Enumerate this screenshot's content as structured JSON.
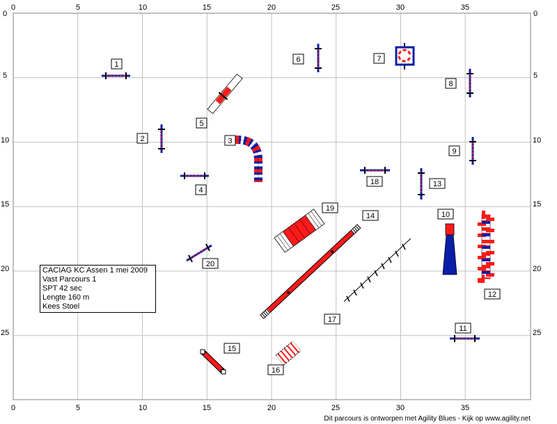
{
  "grid": {
    "x_ticks": [
      "0",
      "5",
      "10",
      "15",
      "20",
      "25",
      "30",
      "35"
    ],
    "y_ticks": [
      "0",
      "5",
      "10",
      "15",
      "20",
      "25"
    ]
  },
  "course_info": {
    "lines": [
      "CACIAG KC Assen 1 mei 2009",
      "Vast Parcours 1",
      "SPT 42 sec",
      "Lengte 160 m",
      "Kees Stoel"
    ]
  },
  "obstacle_numbers": [
    "1",
    "2",
    "3",
    "4",
    "5",
    "6",
    "7",
    "8",
    "9",
    "10",
    "11",
    "12",
    "13",
    "14",
    "15",
    "16",
    "17",
    "18",
    "19",
    "20"
  ],
  "footer": "Dit parcours is ontworpen met Agility Blues - Kijk op www.agility.net",
  "colors": {
    "red": "#ff1a1a",
    "blue": "#0a1ea8",
    "navy": "#000080",
    "grid": "#c0c0c0",
    "black": "#000000"
  }
}
